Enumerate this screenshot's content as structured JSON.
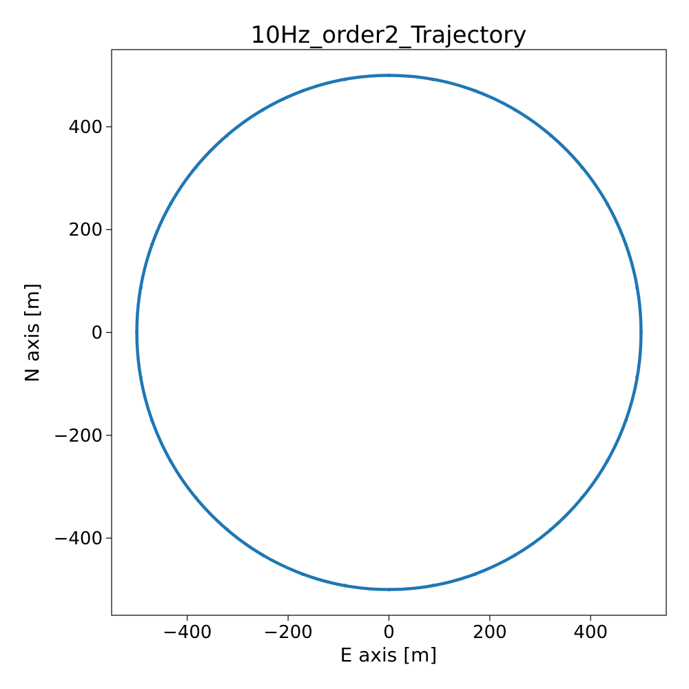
{
  "chart_data": {
    "type": "scatter",
    "title": "10Hz_order2_Trajectory",
    "xlabel": "E axis [m]",
    "ylabel": "N axis [m]",
    "xlim": [
      -550,
      550
    ],
    "ylim": [
      -550,
      550
    ],
    "xticks": [
      -400,
      -200,
      0,
      200,
      400
    ],
    "yticks": [
      -400,
      -200,
      0,
      200,
      400
    ],
    "xtick_labels": [
      "−400",
      "−200",
      "0",
      "200",
      "400"
    ],
    "ytick_labels": [
      "−400",
      "−200",
      "0",
      "200",
      "400"
    ],
    "grid": false,
    "series": [
      {
        "color": "#1f77b4",
        "shape": "circle",
        "center": [
          0,
          0
        ],
        "radius": 500,
        "points": [
          [
            500,
            0
          ],
          [
            492,
            87
          ],
          [
            470,
            171
          ],
          [
            433,
            250
          ],
          [
            383,
            321
          ],
          [
            321,
            383
          ],
          [
            250,
            433
          ],
          [
            171,
            470
          ],
          [
            87,
            492
          ],
          [
            0,
            500
          ],
          [
            -87,
            492
          ],
          [
            -171,
            470
          ],
          [
            -250,
            433
          ],
          [
            -321,
            383
          ],
          [
            -383,
            321
          ],
          [
            -433,
            250
          ],
          [
            -470,
            171
          ],
          [
            -492,
            87
          ],
          [
            -500,
            0
          ],
          [
            -492,
            -87
          ],
          [
            -470,
            -171
          ],
          [
            -433,
            -250
          ],
          [
            -383,
            -321
          ],
          [
            -321,
            -383
          ],
          [
            -250,
            -433
          ],
          [
            -171,
            -470
          ],
          [
            -87,
            -492
          ],
          [
            0,
            -500
          ],
          [
            87,
            -492
          ],
          [
            171,
            -470
          ],
          [
            250,
            -433
          ],
          [
            321,
            -383
          ],
          [
            383,
            -321
          ],
          [
            433,
            -250
          ],
          [
            470,
            -171
          ],
          [
            492,
            -87
          ]
        ]
      }
    ]
  }
}
